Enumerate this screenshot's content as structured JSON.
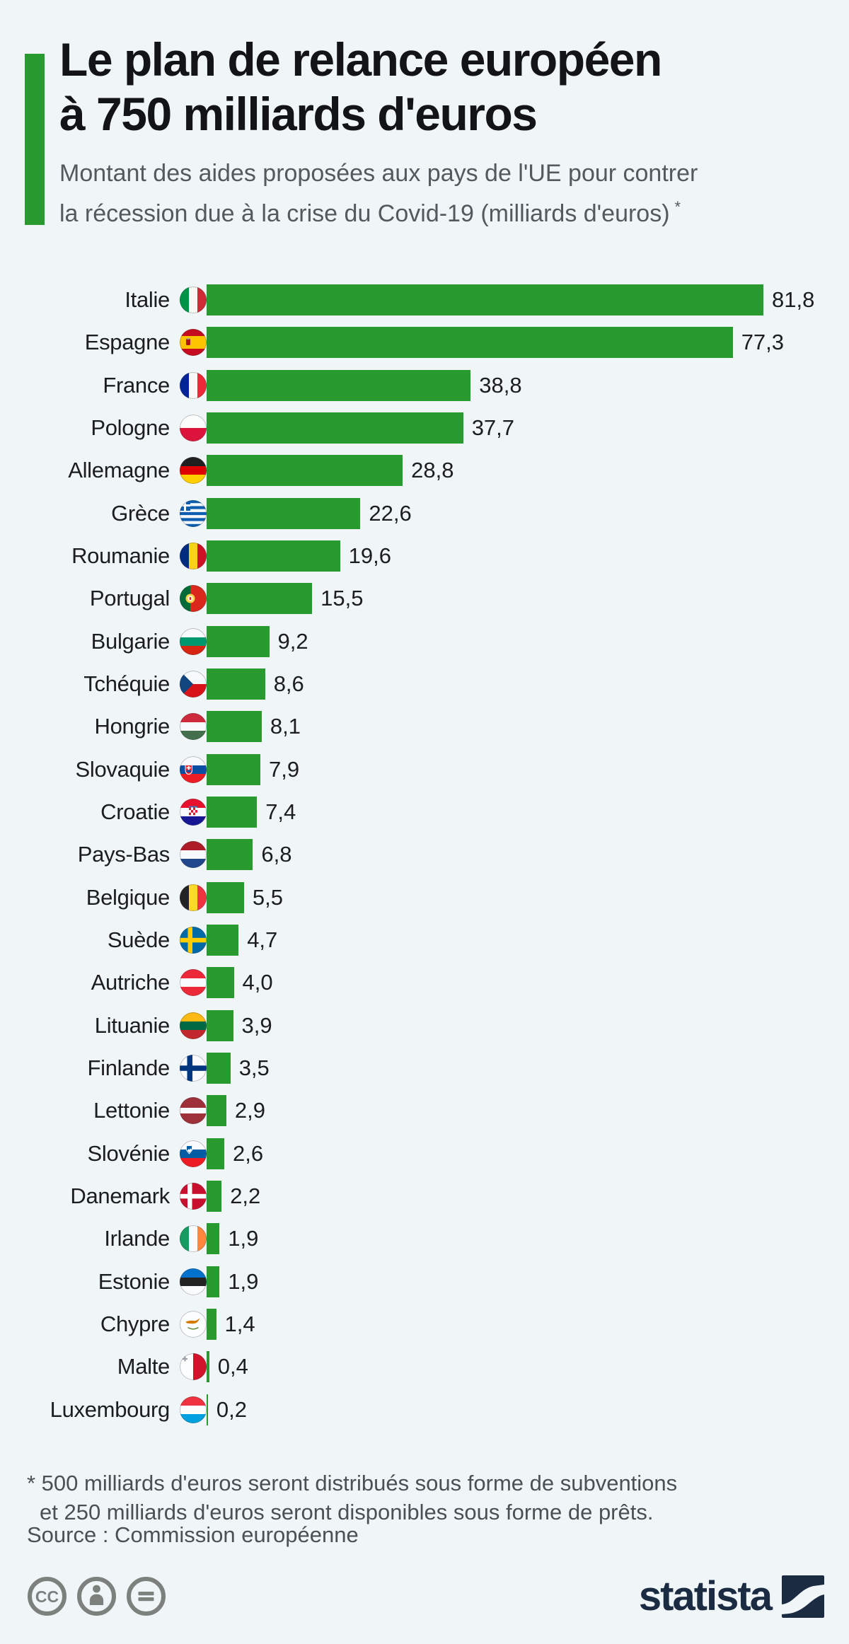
{
  "header": {
    "title_line1": "Le plan de relance européen",
    "title_line2": "à 750 milliards d'euros",
    "subtitle_line1": "Montant des aides proposées aux pays de l'UE pour contrer",
    "subtitle_line2": "la récession due à la crise du Covid-19 (milliards d'euros)",
    "footnote_marker": "*",
    "accent_color": "#299a2f"
  },
  "chart_data": {
    "type": "bar",
    "orientation": "horizontal",
    "unit": "milliards d'euros",
    "max_value": 81.8,
    "bar_color": "#299a2f",
    "categories": [
      "Italie",
      "Espagne",
      "France",
      "Pologne",
      "Allemagne",
      "Grèce",
      "Roumanie",
      "Portugal",
      "Bulgarie",
      "Tchéquie",
      "Hongrie",
      "Slovaquie",
      "Croatie",
      "Pays-Bas",
      "Belgique",
      "Suède",
      "Autriche",
      "Lituanie",
      "Finlande",
      "Lettonie",
      "Slovénie",
      "Danemark",
      "Irlande",
      "Estonie",
      "Chypre",
      "Malte",
      "Luxembourg"
    ],
    "values": [
      81.8,
      77.3,
      38.8,
      37.7,
      28.8,
      22.6,
      19.6,
      15.5,
      9.2,
      8.6,
      8.1,
      7.9,
      7.4,
      6.8,
      5.5,
      4.7,
      4.0,
      3.9,
      3.5,
      2.9,
      2.6,
      2.2,
      1.9,
      1.9,
      1.4,
      0.4,
      0.2
    ],
    "value_labels": [
      "81,8",
      "77,3",
      "38,8",
      "37,7",
      "28,8",
      "22,6",
      "19,6",
      "15,5",
      "9,2",
      "8,6",
      "8,1",
      "7,9",
      "7,4",
      "6,8",
      "5,5",
      "4,7",
      "4,0",
      "3,9",
      "3,5",
      "2,9",
      "2,6",
      "2,2",
      "1,9",
      "1,9",
      "1,4",
      "0,4",
      "0,2"
    ],
    "flags": [
      "italy",
      "spain",
      "france",
      "poland",
      "germany",
      "greece",
      "romania",
      "portugal",
      "bulgaria",
      "czechia",
      "hungary",
      "slovakia",
      "croatia",
      "netherlands",
      "belgium",
      "sweden",
      "austria",
      "lithuania",
      "finland",
      "latvia",
      "slovenia",
      "denmark",
      "ireland",
      "estonia",
      "cyprus",
      "malta",
      "luxembourg"
    ]
  },
  "footer": {
    "footnote_line1": "* 500 milliards d'euros seront distribués sous forme de subventions",
    "footnote_line2": "et 250 milliards d'euros seront disponibles sous forme de prêts.",
    "source": "Source : Commission européenne",
    "license_icons": [
      "creative-commons",
      "attribution",
      "no-derivatives"
    ],
    "logo_text": "statista",
    "logo_color": "#1b2b42"
  }
}
